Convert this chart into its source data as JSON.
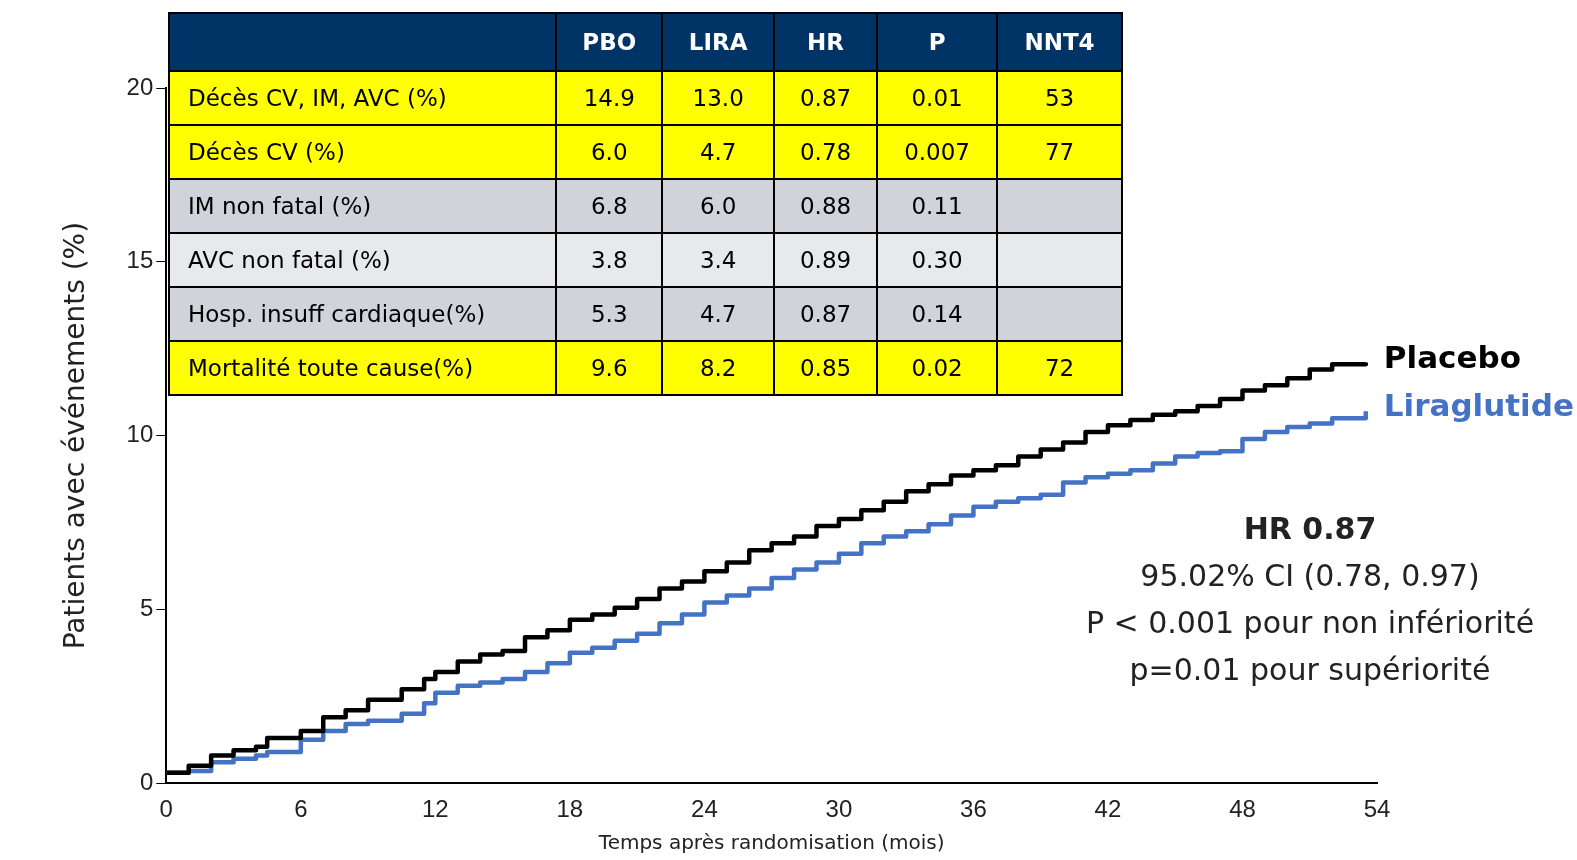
{
  "chart_data": [
    {
      "type": "step",
      "xlabel": "Temps après randomisation (mois)",
      "ylabel": "Patients avec événements (%)",
      "xlim": [
        0,
        54
      ],
      "xticks": [
        0,
        6,
        12,
        18,
        24,
        30,
        36,
        42,
        48,
        54
      ],
      "ylim": [
        0,
        20
      ],
      "yticks": [
        0,
        5,
        10,
        15,
        20
      ],
      "grid": false,
      "legend": false,
      "marker": "none",
      "line_style": "solid",
      "x": [
        0,
        1,
        2,
        3,
        4,
        4.5,
        6,
        7,
        8,
        9,
        10.5,
        11.5,
        12,
        13,
        14,
        15,
        16,
        17,
        18,
        19,
        20,
        21,
        22,
        23,
        24,
        25,
        26,
        27,
        28,
        29,
        30,
        31,
        32,
        33,
        34,
        35,
        36,
        37,
        38,
        39,
        40,
        41,
        42,
        43,
        44,
        45,
        46,
        47,
        48,
        49,
        50,
        51,
        52,
        53.5
      ],
      "series": [
        {
          "name": "Placebo",
          "color": "#000000",
          "values": [
            0.3,
            0.5,
            0.8,
            0.95,
            1.05,
            1.3,
            1.5,
            1.9,
            2.1,
            2.4,
            2.7,
            3.0,
            3.2,
            3.5,
            3.7,
            3.8,
            4.2,
            4.4,
            4.7,
            4.85,
            5.05,
            5.3,
            5.6,
            5.8,
            6.1,
            6.35,
            6.7,
            6.9,
            7.1,
            7.4,
            7.6,
            7.85,
            8.1,
            8.4,
            8.6,
            8.85,
            9.0,
            9.15,
            9.4,
            9.6,
            9.8,
            10.1,
            10.3,
            10.45,
            10.6,
            10.7,
            10.85,
            11.05,
            11.3,
            11.45,
            11.65,
            11.9,
            12.05,
            12.1
          ]
        },
        {
          "name": "Liraglutide",
          "color": "#4472c4",
          "values": [
            0.3,
            0.35,
            0.6,
            0.7,
            0.8,
            0.9,
            1.25,
            1.5,
            1.7,
            1.8,
            2.0,
            2.3,
            2.6,
            2.8,
            2.9,
            3.0,
            3.2,
            3.45,
            3.75,
            3.9,
            4.1,
            4.3,
            4.6,
            4.85,
            5.2,
            5.4,
            5.6,
            5.9,
            6.15,
            6.35,
            6.6,
            6.9,
            7.1,
            7.25,
            7.45,
            7.7,
            7.95,
            8.1,
            8.2,
            8.3,
            8.65,
            8.8,
            8.9,
            9.0,
            9.2,
            9.4,
            9.5,
            9.55,
            9.9,
            10.1,
            10.25,
            10.35,
            10.5,
            10.7
          ]
        }
      ],
      "annotations": [
        "HR 0.87",
        "95.02% CI (0.78, 0.97)",
        "P < 0.001 pour non infériorité",
        "p=0.01 pour supériorité"
      ]
    },
    {
      "type": "other",
      "categories": [
        null,
        "PBO",
        "LIRA",
        "HR",
        "P",
        "NNT4"
      ],
      "y_categories": [
        "Décès CV, IM, AVC (%)",
        "Décès CV (%)",
        "IM non fatal (%)",
        "AVC non fatal (%)",
        "Hosp. insuff cardiaque(%)",
        "Mortalité toute cause(%)"
      ],
      "cell_labels": [
        [
          "14.9",
          "13.0",
          "0.87",
          "0.01",
          "53"
        ],
        [
          "6.0",
          "4.7",
          "0.78",
          "0.007",
          "77"
        ],
        [
          "6.8",
          "6.0",
          "0.88",
          "0.11",
          null
        ],
        [
          "3.8",
          "3.4",
          "0.89",
          "0.30",
          null
        ],
        [
          "5.3",
          "4.7",
          "0.87",
          "0.14",
          null
        ],
        [
          "9.6",
          "8.2",
          "0.85",
          "0.02",
          "72"
        ]
      ]
    }
  ]
}
